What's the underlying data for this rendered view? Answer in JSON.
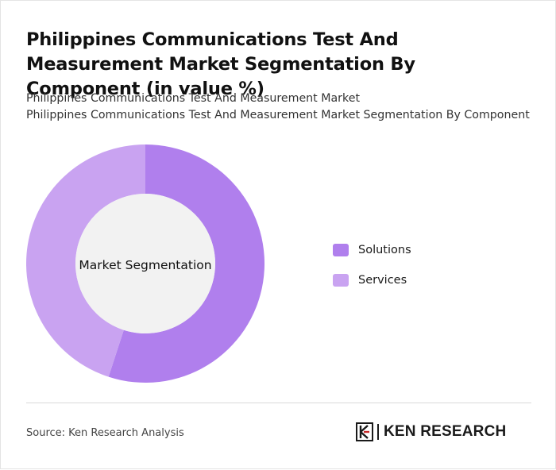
{
  "title": "Philippines Communications Test And Measurement Market Segmentation By Component (in value %)",
  "subtitle_1": "Philippines Communications Test And Measurement Market",
  "subtitle_2": "Philippines Communications Test And Measurement Market Segmentation By Component",
  "chart_data": {
    "type": "pie",
    "variant": "donut",
    "center_label": "Market Segmentation",
    "categories": [
      "Solutions",
      "Services"
    ],
    "values": [
      55,
      45
    ],
    "colors": [
      "#b07fed",
      "#c9a3f1"
    ],
    "legend_position": "right"
  },
  "source": "Source: Ken Research Analysis",
  "logo": {
    "text": "KEN RESEARCH",
    "icon": "ken-research-logo-icon"
  }
}
